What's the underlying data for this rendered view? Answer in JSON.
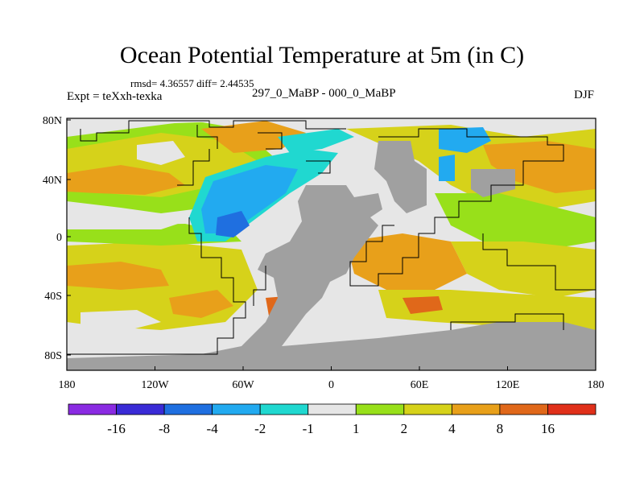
{
  "title": "Ocean Potential Temperature at 5m (in C)",
  "stats": "rmsd= 4.36557 diff= 2.44535",
  "experiment": "Expt = teXxh-texka",
  "subtitle": "297_0_MaBP - 000_0_MaBP",
  "season": "DJF",
  "axes": {
    "lon_ticks": [
      "180",
      "120W",
      "60W",
      "0",
      "60E",
      "120E",
      "180"
    ],
    "lat_ticks": [
      "80N",
      "40N",
      "0",
      "40S",
      "80S"
    ]
  },
  "colorbar": {
    "labels": [
      "-16",
      "-8",
      "-4",
      "-2",
      "-1",
      "1",
      "2",
      "4",
      "8",
      "16"
    ],
    "colors": [
      "#8a2be2",
      "#3a2bd6",
      "#1f6fe0",
      "#22aaf0",
      "#20d8d0",
      "#e6e6e6",
      "#98e01a",
      "#d6d21a",
      "#e8a01a",
      "#e0681a",
      "#e0301a"
    ]
  },
  "land_color": "#a0a0a0"
}
